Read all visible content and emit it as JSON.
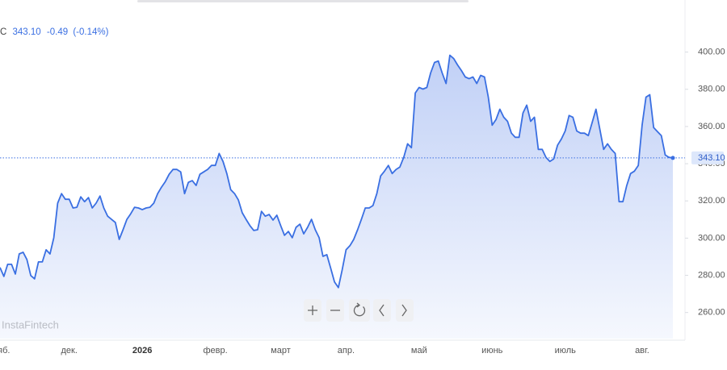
{
  "chart_data": {
    "type": "area",
    "header": {
      "symbol": "C",
      "price": "343.10",
      "change": "-0.49",
      "change_pct": "(-0.14%)"
    },
    "watermark": "InstaFintech",
    "color": "#3a6fe2",
    "categories": [
      null,
      "яб.",
      null,
      null,
      null,
      null,
      null,
      null,
      null,
      null,
      null,
      null,
      null,
      null,
      null,
      null,
      null,
      null,
      "дек.",
      null,
      null,
      null,
      null,
      null,
      null,
      null,
      null,
      null,
      null,
      null,
      null,
      null,
      null,
      null,
      null,
      null,
      null,
      "2026",
      null,
      null,
      null,
      null,
      null,
      null,
      null,
      null,
      null,
      null,
      null,
      null,
      null,
      null,
      null,
      null,
      null,
      null,
      "февр.",
      null,
      null,
      null,
      null,
      null,
      null,
      null,
      null,
      null,
      null,
      null,
      null,
      null,
      null,
      null,
      null,
      "март",
      null,
      null,
      null,
      null,
      null,
      null,
      null,
      null,
      null,
      null,
      null,
      null,
      null,
      null,
      null,
      null,
      "апр.",
      null,
      null,
      null,
      null,
      null,
      null,
      null,
      null,
      null,
      null,
      null,
      null,
      null,
      null,
      null,
      null,
      null,
      null,
      "май",
      null,
      null,
      null,
      null,
      null,
      null,
      null,
      null,
      null,
      null,
      null,
      null,
      null,
      null,
      null,
      null,
      null,
      null,
      "июнь",
      null,
      null,
      null,
      null,
      null,
      null,
      null,
      null,
      null,
      null,
      null,
      null,
      null,
      null,
      null,
      null,
      null,
      null,
      "июль",
      null,
      null,
      null,
      null,
      null,
      null,
      null,
      null,
      null,
      null,
      null,
      null,
      null,
      null,
      null,
      null,
      null,
      null,
      null,
      "авг.",
      null,
      null,
      null,
      null,
      null,
      null,
      null,
      null
    ],
    "values": [
      284.2,
      279.4,
      285.9,
      285.9,
      280.7,
      291.5,
      292.4,
      288.5,
      279.9,
      278.1,
      287.2,
      287.2,
      293.7,
      291.5,
      300.2,
      318.8,
      323.9,
      320.9,
      320.9,
      316.2,
      316.6,
      322.2,
      319.6,
      321.8,
      316.2,
      318.8,
      322.6,
      316.2,
      311.8,
      310.1,
      308.4,
      299.3,
      304.5,
      310.1,
      313.1,
      316.6,
      316.2,
      315.3,
      316.2,
      316.6,
      318.8,
      323.9,
      327.4,
      330.4,
      334.3,
      336.9,
      336.9,
      335.6,
      323.9,
      330.0,
      330.9,
      328.3,
      334.3,
      335.6,
      336.9,
      339.1,
      339.1,
      345.5,
      341.2,
      334.7,
      326.1,
      323.9,
      320.5,
      313.6,
      310.1,
      306.7,
      304.1,
      304.5,
      314.4,
      311.8,
      312.7,
      309.7,
      312.3,
      306.7,
      301.5,
      303.6,
      300.2,
      305.8,
      307.5,
      302.3,
      305.8,
      310.1,
      304.5,
      300.2,
      290.2,
      291.1,
      283.8,
      276.4,
      273.4,
      282.9,
      293.7,
      295.9,
      299.3,
      304.5,
      310.1,
      316.2,
      316.2,
      317.5,
      323.9,
      333.4,
      336.0,
      339.1,
      334.7,
      336.9,
      338.2,
      343.4,
      350.7,
      348.6,
      378.0,
      381.0,
      380.1,
      381.0,
      388.8,
      394.4,
      395.2,
      388.8,
      383.1,
      398.3,
      396.5,
      393.1,
      390.1,
      386.6,
      385.7,
      386.6,
      383.1,
      387.5,
      386.6,
      375.8,
      360.7,
      363.7,
      369.3,
      365.0,
      362.8,
      356.4,
      354.2,
      354.2,
      367.2,
      371.5,
      362.8,
      365.0,
      347.7,
      347.7,
      343.4,
      341.2,
      342.5,
      349.9,
      353.3,
      357.6,
      365.9,
      365.0,
      357.6,
      356.4,
      356.4,
      355.1,
      362.0,
      369.3,
      358.5,
      347.7,
      350.7,
      347.7,
      345.5,
      319.6,
      319.6,
      328.3,
      334.7,
      336.0,
      339.1,
      360.7,
      375.8,
      377.1,
      359.4,
      357.2,
      355.1,
      344.7,
      343.4,
      343.1
    ],
    "last_price": {
      "value": 343.1,
      "label": "343.10"
    },
    "ylim": [
      246,
      428
    ],
    "yticks": [
      {
        "value": 260,
        "label": "260.00"
      },
      {
        "value": 280,
        "label": "280.00"
      },
      {
        "value": 300,
        "label": "300.00"
      },
      {
        "value": 320,
        "label": "320.00"
      },
      {
        "value": 340,
        "label": "340.00"
      },
      {
        "value": 360,
        "label": "360.00"
      },
      {
        "value": 380,
        "label": "380.00"
      },
      {
        "value": 400,
        "label": "400.00"
      }
    ]
  }
}
